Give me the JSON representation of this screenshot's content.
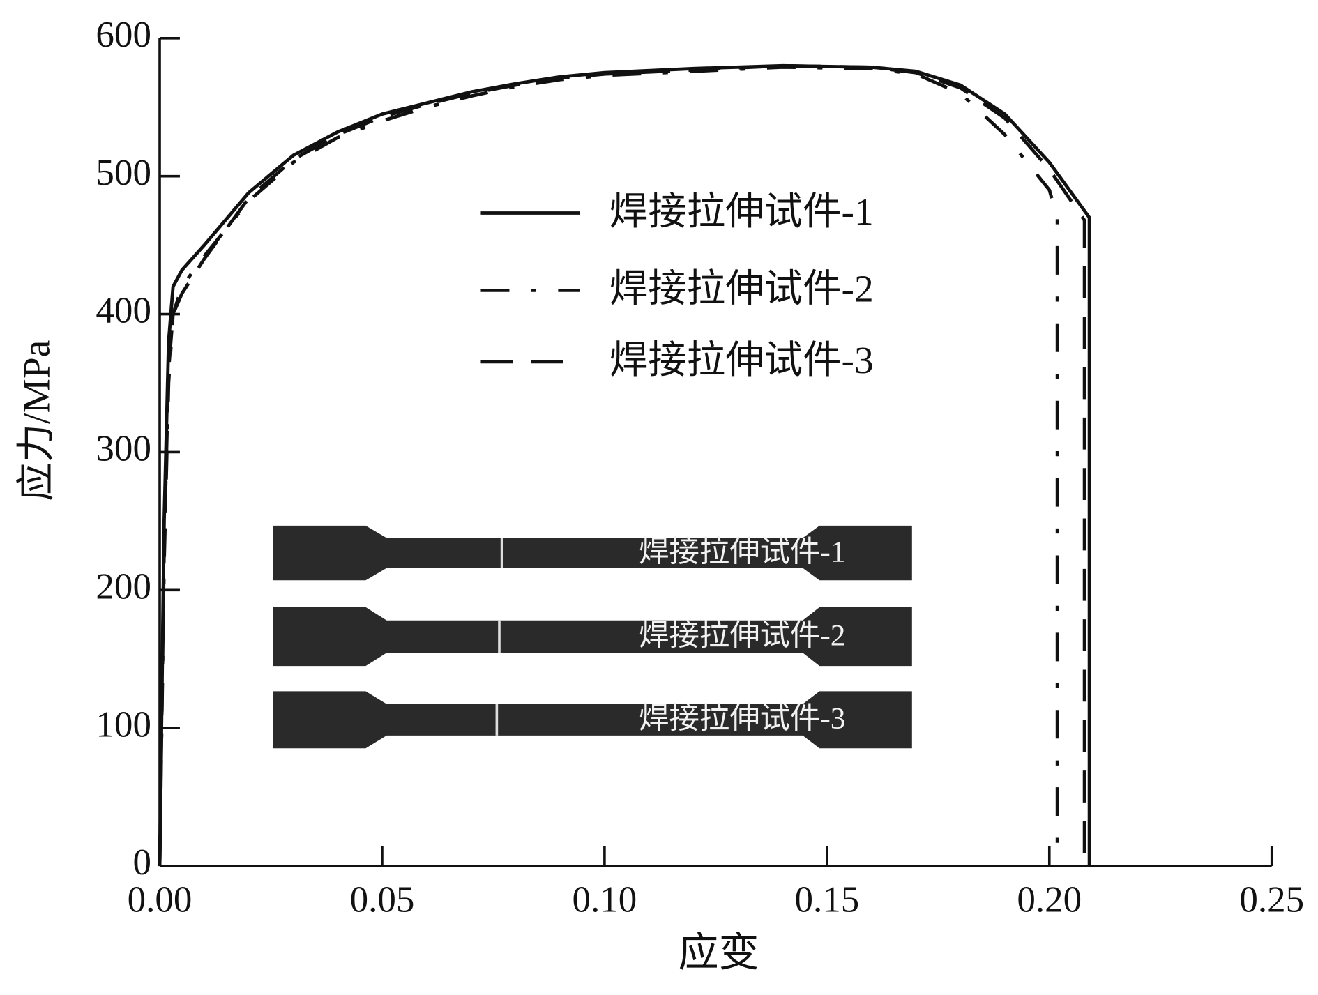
{
  "chart_data": {
    "type": "line",
    "x_label": "应变",
    "y_label": "应力/MPa",
    "xlim": [
      0,
      0.25
    ],
    "ylim": [
      0,
      600
    ],
    "xticks": [
      {
        "value": 0,
        "label": "0.00"
      },
      {
        "value": 0.05,
        "label": "0.05"
      },
      {
        "value": 0.1,
        "label": "0.10"
      },
      {
        "value": 0.15,
        "label": "0.15"
      },
      {
        "value": 0.2,
        "label": "0.20"
      },
      {
        "value": 0.25,
        "label": "0.25"
      }
    ],
    "yticks": [
      0,
      100,
      200,
      300,
      400,
      500,
      600
    ],
    "legend": "top-center",
    "series": [
      {
        "name": "焊接拉伸试件-1",
        "color": "#111111",
        "dash": "solid",
        "x": [
          0,
          0.001,
          0.002,
          0.003,
          0.005,
          0.01,
          0.02,
          0.03,
          0.04,
          0.05,
          0.06,
          0.07,
          0.08,
          0.09,
          0.1,
          0.12,
          0.14,
          0.16,
          0.17,
          0.18,
          0.19,
          0.2,
          0.209,
          0.209
        ],
        "values": [
          0,
          250,
          380,
          420,
          432,
          450,
          488,
          515,
          532,
          545,
          553,
          561,
          567,
          572,
          575,
          578,
          580,
          579,
          576,
          566,
          545,
          510,
          470,
          0
        ]
      },
      {
        "name": "焊接拉伸试件-2",
        "color": "#111111",
        "dash": "dashdot",
        "x": [
          0,
          0.001,
          0.002,
          0.003,
          0.005,
          0.01,
          0.02,
          0.03,
          0.04,
          0.05,
          0.06,
          0.07,
          0.08,
          0.09,
          0.1,
          0.12,
          0.14,
          0.16,
          0.17,
          0.18,
          0.19,
          0.2,
          0.2018,
          0.2018
        ],
        "values": [
          0,
          220,
          350,
          400,
          420,
          442,
          482,
          510,
          528,
          540,
          550,
          558,
          565,
          570,
          573,
          576,
          579,
          578,
          574,
          560,
          530,
          490,
          470,
          0
        ]
      },
      {
        "name": "焊接拉伸试件-3",
        "color": "#111111",
        "dash": "dashed",
        "x": [
          0,
          0.001,
          0.002,
          0.003,
          0.005,
          0.01,
          0.02,
          0.03,
          0.04,
          0.05,
          0.06,
          0.07,
          0.08,
          0.09,
          0.1,
          0.12,
          0.14,
          0.16,
          0.17,
          0.18,
          0.19,
          0.2,
          0.2079,
          0.2079
        ],
        "values": [
          0,
          230,
          360,
          400,
          415,
          440,
          484,
          512,
          530,
          543,
          552,
          560,
          566,
          571,
          574,
          577,
          580,
          579,
          575,
          564,
          542,
          505,
          468,
          0
        ]
      }
    ],
    "inset_labels": [
      "焊接拉伸试件-1",
      "焊接拉伸试件-2",
      "焊接拉伸试件-3"
    ]
  }
}
